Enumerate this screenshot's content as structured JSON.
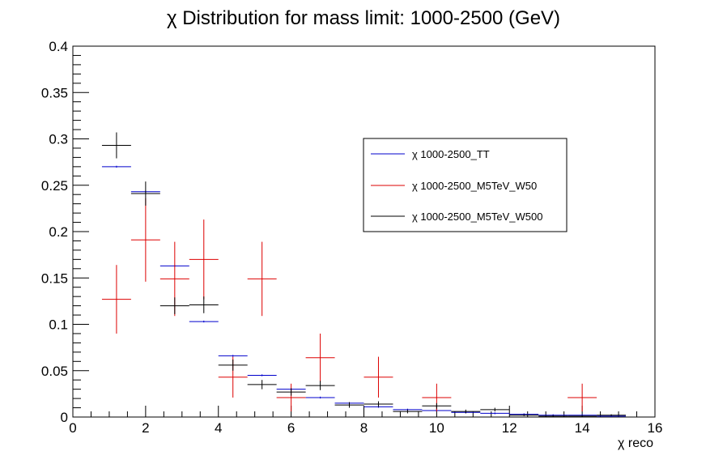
{
  "chart_data": {
    "type": "scatter",
    "title": "χ Distribution for mass limit: 1000-2500 (GeV)",
    "xlabel": "χ reco",
    "ylabel": "",
    "xlim": [
      0,
      16
    ],
    "ylim": [
      0,
      0.4
    ],
    "x_ticks": [
      "0",
      "2",
      "4",
      "6",
      "8",
      "10",
      "12",
      "14",
      "16"
    ],
    "y_ticks": [
      "0",
      "0.05",
      "0.1",
      "0.15",
      "0.2",
      "0.25",
      "0.3",
      "0.35",
      "0.4"
    ],
    "grid": false,
    "legend_position": "top-right",
    "series": [
      {
        "name": "χ 1000-2500_TT",
        "color": "#0000cc",
        "points": [
          {
            "x": 1.2,
            "xerr": 0.4,
            "y": 0.27,
            "yerr": 0.001
          },
          {
            "x": 2.0,
            "xerr": 0.4,
            "y": 0.243,
            "yerr": 0.001
          },
          {
            "x": 2.8,
            "xerr": 0.4,
            "y": 0.163,
            "yerr": 0.001
          },
          {
            "x": 3.6,
            "xerr": 0.4,
            "y": 0.103,
            "yerr": 0.001
          },
          {
            "x": 4.4,
            "xerr": 0.4,
            "y": 0.066,
            "yerr": 0.001
          },
          {
            "x": 5.2,
            "xerr": 0.4,
            "y": 0.045,
            "yerr": 0.001
          },
          {
            "x": 6.0,
            "xerr": 0.4,
            "y": 0.03,
            "yerr": 0.001
          },
          {
            "x": 6.8,
            "xerr": 0.4,
            "y": 0.021,
            "yerr": 0.001
          },
          {
            "x": 7.6,
            "xerr": 0.4,
            "y": 0.015,
            "yerr": 0.001
          },
          {
            "x": 8.4,
            "xerr": 0.4,
            "y": 0.011,
            "yerr": 0.001
          },
          {
            "x": 9.2,
            "xerr": 0.4,
            "y": 0.008,
            "yerr": 0.001
          },
          {
            "x": 10.0,
            "xerr": 0.4,
            "y": 0.007,
            "yerr": 0.001
          },
          {
            "x": 10.8,
            "xerr": 0.4,
            "y": 0.005,
            "yerr": 0.001
          },
          {
            "x": 11.6,
            "xerr": 0.4,
            "y": 0.004,
            "yerr": 0.001
          },
          {
            "x": 12.4,
            "xerr": 0.4,
            "y": 0.003,
            "yerr": 0.001
          },
          {
            "x": 13.2,
            "xerr": 0.4,
            "y": 0.002,
            "yerr": 0.001
          },
          {
            "x": 14.0,
            "xerr": 0.4,
            "y": 0.002,
            "yerr": 0.001
          },
          {
            "x": 14.8,
            "xerr": 0.4,
            "y": 0.001,
            "yerr": 0.001
          }
        ]
      },
      {
        "name": "χ 1000-2500_M5TeV_W50",
        "color": "#dd0000",
        "points": [
          {
            "x": 1.2,
            "xerr": 0.4,
            "y": 0.127,
            "yerr": 0.037
          },
          {
            "x": 2.0,
            "xerr": 0.4,
            "y": 0.191,
            "yerr": 0.045
          },
          {
            "x": 2.8,
            "xerr": 0.4,
            "y": 0.149,
            "yerr": 0.04
          },
          {
            "x": 3.6,
            "xerr": 0.4,
            "y": 0.17,
            "yerr": 0.043
          },
          {
            "x": 4.4,
            "xerr": 0.4,
            "y": 0.043,
            "yerr": 0.022
          },
          {
            "x": 5.2,
            "xerr": 0.4,
            "y": 0.149,
            "yerr": 0.04
          },
          {
            "x": 6.0,
            "xerr": 0.4,
            "y": 0.021,
            "yerr": 0.015
          },
          {
            "x": 6.8,
            "xerr": 0.4,
            "y": 0.064,
            "yerr": 0.026
          },
          {
            "x": 8.4,
            "xerr": 0.4,
            "y": 0.043,
            "yerr": 0.022
          },
          {
            "x": 10.0,
            "xerr": 0.4,
            "y": 0.021,
            "yerr": 0.015
          },
          {
            "x": 14.0,
            "xerr": 0.4,
            "y": 0.021,
            "yerr": 0.015
          }
        ]
      },
      {
        "name": "χ 1000-2500_M5TeV_W500",
        "color": "#000000",
        "points": [
          {
            "x": 1.2,
            "xerr": 0.4,
            "y": 0.293,
            "yerr": 0.014
          },
          {
            "x": 2.0,
            "xerr": 0.4,
            "y": 0.241,
            "yerr": 0.013
          },
          {
            "x": 2.8,
            "xerr": 0.4,
            "y": 0.12,
            "yerr": 0.009
          },
          {
            "x": 3.6,
            "xerr": 0.4,
            "y": 0.121,
            "yerr": 0.009
          },
          {
            "x": 4.4,
            "xerr": 0.4,
            "y": 0.056,
            "yerr": 0.006
          },
          {
            "x": 5.2,
            "xerr": 0.4,
            "y": 0.035,
            "yerr": 0.005
          },
          {
            "x": 6.0,
            "xerr": 0.4,
            "y": 0.027,
            "yerr": 0.004
          },
          {
            "x": 6.8,
            "xerr": 0.4,
            "y": 0.034,
            "yerr": 0.005
          },
          {
            "x": 7.6,
            "xerr": 0.4,
            "y": 0.013,
            "yerr": 0.003
          },
          {
            "x": 8.4,
            "xerr": 0.4,
            "y": 0.014,
            "yerr": 0.003
          },
          {
            "x": 9.2,
            "xerr": 0.4,
            "y": 0.006,
            "yerr": 0.002
          },
          {
            "x": 10.0,
            "xerr": 0.4,
            "y": 0.012,
            "yerr": 0.003
          },
          {
            "x": 10.8,
            "xerr": 0.4,
            "y": 0.006,
            "yerr": 0.002
          },
          {
            "x": 11.6,
            "xerr": 0.4,
            "y": 0.008,
            "yerr": 0.002
          },
          {
            "x": 12.4,
            "xerr": 0.4,
            "y": 0.002,
            "yerr": 0.001
          },
          {
            "x": 13.2,
            "xerr": 0.4,
            "y": 0.001,
            "yerr": 0.001
          },
          {
            "x": 14.0,
            "xerr": 0.4,
            "y": 0.001,
            "yerr": 0.001
          },
          {
            "x": 14.8,
            "xerr": 0.4,
            "y": 0.002,
            "yerr": 0.001
          }
        ]
      }
    ]
  }
}
